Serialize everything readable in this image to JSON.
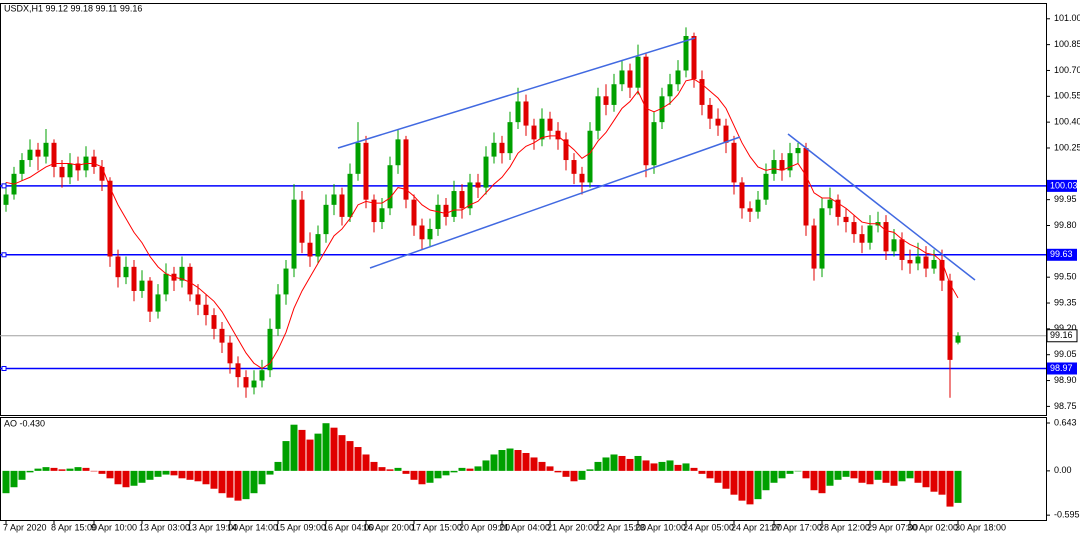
{
  "chart_data": [
    {
      "type": "candlestick",
      "title": "USDX,H1  99.12 99.18 99.11 99.16",
      "up_color": "#00a000",
      "down_color": "#e00000",
      "ma_color": "#ff0000",
      "ylim": [
        98.7,
        101.08
      ],
      "yticks": [
        {
          "value": 101,
          "label": "101.00"
        },
        100.85,
        {
          "value": 100.7,
          "label": "100.70"
        },
        100.55,
        {
          "value": 100.4,
          "label": "100.40"
        },
        100.25,
        99.95,
        {
          "value": 99.8,
          "label": "99.80"
        },
        {
          "value": 99.5,
          "label": "99.50"
        },
        99.35,
        {
          "value": 99.2,
          "label": "99.20"
        },
        99.05,
        {
          "value": 98.9,
          "label": "98.90"
        },
        98.75
      ],
      "levels": [
        {
          "value": 100.03,
          "color": "#0000ff"
        },
        {
          "value": 99.63,
          "color": "#0000ff"
        },
        {
          "value": 98.97,
          "color": "#0000ff"
        }
      ],
      "price_line": 99.16,
      "categories": [
        "7 Apr 2020",
        null,
        null,
        null,
        null,
        null,
        "8 Apr 15:00",
        null,
        null,
        null,
        null,
        "9 Apr 10:00",
        null,
        null,
        null,
        null,
        null,
        "13 Apr 03:00",
        null,
        null,
        null,
        null,
        null,
        "13 Apr 19:00",
        null,
        null,
        null,
        null,
        "14 Apr 14:00",
        null,
        null,
        null,
        null,
        null,
        "15 Apr 09:00",
        null,
        null,
        null,
        null,
        null,
        "16 Apr 04:00",
        null,
        null,
        null,
        null,
        "16 Apr 20:00",
        null,
        null,
        null,
        null,
        null,
        "17 Apr 15:00",
        null,
        null,
        null,
        null,
        null,
        "20 Apr 09:00",
        null,
        null,
        null,
        null,
        "21 Apr 04:00",
        null,
        null,
        null,
        null,
        null,
        "21 Apr 20:00",
        null,
        null,
        null,
        null,
        null,
        "22 Apr 15:00",
        null,
        null,
        null,
        null,
        "23 Apr 10:00",
        null,
        null,
        null,
        null,
        null,
        "24 Apr 05:00",
        null,
        null,
        null,
        null,
        null,
        "24 Apr 21:00",
        null,
        null,
        null,
        null,
        "27 Apr 17:00",
        null,
        null,
        null,
        null,
        null,
        "28 Apr 12:00",
        null,
        null,
        null,
        null,
        null,
        "29 Apr 07:00",
        null,
        null,
        null,
        null,
        "30 Apr 02:00",
        null,
        null,
        null,
        null,
        null,
        "30 Apr 18:00"
      ],
      "candles": [
        [
          99.92,
          100.05,
          99.88,
          99.98
        ],
        [
          99.98,
          100.14,
          99.95,
          100.1
        ],
        [
          100.1,
          100.22,
          100.06,
          100.18
        ],
        [
          100.18,
          100.3,
          100.14,
          100.24
        ],
        [
          100.24,
          100.28,
          100.12,
          100.2
        ],
        [
          100.2,
          100.36,
          100.16,
          100.28
        ],
        [
          100.28,
          100.3,
          100.08,
          100.14
        ],
        [
          100.14,
          100.18,
          100.02,
          100.08
        ],
        [
          100.08,
          100.22,
          100.04,
          100.16
        ],
        [
          100.16,
          100.2,
          100.06,
          100.12
        ],
        [
          100.12,
          100.26,
          100.08,
          100.2
        ],
        [
          100.2,
          100.24,
          100.1,
          100.14
        ],
        [
          100.14,
          100.18,
          100.0,
          100.06
        ],
        [
          100.06,
          100.08,
          99.56,
          99.62
        ],
        [
          99.62,
          99.66,
          99.44,
          99.5
        ],
        [
          99.5,
          99.62,
          99.46,
          99.56
        ],
        [
          99.56,
          99.6,
          99.36,
          99.42
        ],
        [
          99.42,
          99.54,
          99.38,
          99.48
        ],
        [
          99.48,
          99.5,
          99.24,
          99.3
        ],
        [
          99.3,
          99.46,
          99.26,
          99.4
        ],
        [
          99.4,
          99.58,
          99.36,
          99.52
        ],
        [
          99.52,
          99.56,
          99.42,
          99.48
        ],
        [
          99.48,
          99.62,
          99.44,
          99.56
        ],
        [
          99.56,
          99.58,
          99.36,
          99.4
        ],
        [
          99.4,
          99.46,
          99.28,
          99.34
        ],
        [
          99.34,
          99.4,
          99.22,
          99.28
        ],
        [
          99.28,
          99.32,
          99.14,
          99.2
        ],
        [
          99.2,
          99.24,
          99.06,
          99.12
        ],
        [
          99.12,
          99.16,
          98.94,
          99.0
        ],
        [
          99.0,
          99.04,
          98.86,
          98.92
        ],
        [
          98.92,
          98.96,
          98.8,
          98.86
        ],
        [
          98.86,
          98.96,
          98.82,
          98.9
        ],
        [
          98.9,
          99.02,
          98.86,
          98.96
        ],
        [
          98.96,
          99.26,
          98.92,
          99.2
        ],
        [
          99.2,
          99.46,
          99.16,
          99.4
        ],
        [
          99.4,
          99.6,
          99.34,
          99.55
        ],
        [
          99.55,
          100.04,
          99.5,
          99.95
        ],
        [
          99.95,
          100.0,
          99.64,
          99.7
        ],
        [
          99.7,
          99.76,
          99.56,
          99.62
        ],
        [
          99.62,
          99.8,
          99.58,
          99.75
        ],
        [
          99.75,
          99.98,
          99.7,
          99.92
        ],
        [
          99.92,
          100.04,
          99.86,
          99.98
        ],
        [
          99.98,
          100.02,
          99.8,
          99.85
        ],
        [
          99.85,
          100.16,
          99.82,
          100.1
        ],
        [
          100.1,
          100.4,
          100.06,
          100.28
        ],
        [
          100.28,
          100.32,
          99.9,
          99.95
        ],
        [
          99.95,
          99.98,
          99.76,
          99.82
        ],
        [
          99.82,
          99.96,
          99.78,
          99.9
        ],
        [
          99.9,
          100.2,
          99.86,
          100.15
        ],
        [
          100.15,
          100.36,
          100.1,
          100.3
        ],
        [
          100.3,
          100.32,
          99.9,
          99.95
        ],
        [
          99.95,
          99.98,
          99.74,
          99.8
        ],
        [
          99.8,
          99.84,
          99.66,
          99.72
        ],
        [
          99.72,
          99.84,
          99.68,
          99.78
        ],
        [
          99.78,
          99.98,
          99.74,
          99.92
        ],
        [
          99.92,
          99.96,
          99.8,
          99.85
        ],
        [
          99.85,
          100.06,
          99.82,
          100.0
        ],
        [
          100.0,
          100.04,
          99.84,
          99.9
        ],
        [
          99.9,
          100.1,
          99.86,
          100.05
        ],
        [
          100.05,
          100.1,
          99.96,
          100.02
        ],
        [
          100.02,
          100.26,
          99.98,
          100.2
        ],
        [
          100.2,
          100.34,
          100.16,
          100.28
        ],
        [
          100.28,
          100.32,
          100.16,
          100.22
        ],
        [
          100.22,
          100.46,
          100.18,
          100.4
        ],
        [
          100.4,
          100.6,
          100.36,
          100.52
        ],
        [
          100.52,
          100.56,
          100.32,
          100.38
        ],
        [
          100.38,
          100.42,
          100.24,
          100.3
        ],
        [
          100.3,
          100.48,
          100.26,
          100.42
        ],
        [
          100.42,
          100.46,
          100.3,
          100.35
        ],
        [
          100.35,
          100.4,
          100.24,
          100.3
        ],
        [
          100.3,
          100.34,
          100.12,
          100.18
        ],
        [
          100.18,
          100.22,
          100.04,
          100.1
        ],
        [
          100.1,
          100.14,
          99.98,
          100.05
        ],
        [
          100.05,
          100.4,
          100.02,
          100.35
        ],
        [
          100.35,
          100.6,
          100.3,
          100.55
        ],
        [
          100.55,
          100.62,
          100.44,
          100.5
        ],
        [
          100.5,
          100.68,
          100.46,
          100.62
        ],
        [
          100.62,
          100.76,
          100.58,
          100.7
        ],
        [
          100.7,
          100.74,
          100.54,
          100.6
        ],
        [
          100.6,
          100.85,
          100.56,
          100.78
        ],
        [
          100.78,
          100.8,
          100.08,
          100.15
        ],
        [
          100.15,
          100.46,
          100.1,
          100.4
        ],
        [
          100.4,
          100.6,
          100.36,
          100.55
        ],
        [
          100.55,
          100.68,
          100.5,
          100.62
        ],
        [
          100.62,
          100.76,
          100.58,
          100.7
        ],
        [
          100.7,
          100.95,
          100.66,
          100.9
        ],
        [
          100.9,
          100.92,
          100.6,
          100.65
        ],
        [
          100.65,
          100.7,
          100.44,
          100.5
        ],
        [
          100.5,
          100.54,
          100.36,
          100.42
        ],
        [
          100.42,
          100.48,
          100.32,
          100.38
        ],
        [
          100.38,
          100.42,
          100.22,
          100.28
        ],
        [
          100.28,
          100.32,
          99.98,
          100.05
        ],
        [
          100.05,
          100.08,
          99.84,
          99.9
        ],
        [
          99.9,
          99.94,
          99.82,
          99.88
        ],
        [
          99.88,
          100.0,
          99.84,
          99.95
        ],
        [
          99.95,
          100.16,
          99.92,
          100.1
        ],
        [
          100.1,
          100.24,
          100.06,
          100.18
        ],
        [
          100.18,
          100.22,
          100.06,
          100.12
        ],
        [
          100.12,
          100.28,
          100.08,
          100.22
        ],
        [
          100.22,
          100.28,
          100.16,
          100.25
        ],
        [
          100.25,
          100.28,
          99.74,
          99.8
        ],
        [
          99.8,
          99.84,
          99.48,
          99.55
        ],
        [
          99.55,
          99.96,
          99.5,
          99.9
        ],
        [
          99.9,
          100.02,
          99.86,
          99.95
        ],
        [
          99.95,
          99.98,
          99.8,
          99.85
        ],
        [
          99.85,
          99.9,
          99.76,
          99.82
        ],
        [
          99.82,
          99.86,
          99.7,
          99.75
        ],
        [
          99.75,
          99.8,
          99.64,
          99.7
        ],
        [
          99.7,
          99.86,
          99.66,
          99.8
        ],
        [
          99.8,
          99.88,
          99.76,
          99.82
        ],
        [
          99.82,
          99.86,
          99.6,
          99.65
        ],
        [
          99.65,
          99.78,
          99.62,
          99.72
        ],
        [
          99.72,
          99.76,
          99.54,
          99.6
        ],
        [
          99.6,
          99.66,
          99.52,
          99.58
        ],
        [
          99.58,
          99.7,
          99.54,
          99.62
        ],
        [
          99.62,
          99.68,
          99.5,
          99.55
        ],
        [
          99.55,
          99.66,
          99.52,
          99.6
        ],
        [
          99.6,
          99.66,
          99.42,
          99.48
        ],
        [
          99.48,
          99.52,
          98.8,
          99.02
        ],
        [
          99.12,
          99.18,
          99.11,
          99.16
        ]
      ],
      "ma": [
        100.05,
        100.04,
        100.06,
        100.08,
        100.11,
        100.14,
        100.16,
        100.16,
        100.16,
        100.15,
        100.16,
        100.16,
        100.14,
        100.02,
        99.92,
        99.84,
        99.76,
        99.7,
        99.62,
        99.56,
        99.52,
        99.5,
        99.49,
        99.47,
        99.44,
        99.4,
        99.36,
        99.3,
        99.22,
        99.14,
        99.06,
        99.0,
        98.97,
        99.0,
        99.08,
        99.18,
        99.32,
        99.42,
        99.5,
        99.58,
        99.66,
        99.74,
        99.78,
        99.84,
        99.92,
        99.94,
        99.93,
        99.93,
        99.96,
        100.02,
        100.01,
        99.97,
        99.92,
        99.89,
        99.88,
        99.87,
        99.89,
        99.89,
        99.92,
        99.94,
        99.99,
        100.04,
        100.08,
        100.14,
        100.22,
        100.26,
        100.28,
        100.31,
        100.32,
        100.32,
        100.28,
        100.24,
        100.19,
        100.22,
        100.29,
        100.34,
        100.41,
        100.48,
        100.52,
        100.58,
        100.48,
        100.46,
        100.48,
        100.51,
        100.56,
        100.64,
        100.65,
        100.62,
        100.58,
        100.54,
        100.48,
        100.38,
        100.28,
        100.2,
        100.14,
        100.12,
        100.13,
        100.12,
        100.14,
        100.16,
        100.09,
        99.99,
        99.96,
        99.96,
        99.93,
        99.9,
        99.86,
        99.82,
        99.81,
        99.81,
        99.77,
        99.76,
        99.72,
        99.69,
        99.67,
        99.64,
        99.63,
        99.59,
        99.46,
        99.38
      ]
    },
    {
      "type": "bar",
      "title": "AO -0.430",
      "up_color": "#00a000",
      "down_color": "#e00000",
      "ylim": [
        -0.66,
        0.71
      ],
      "yticks": [
        0.643,
        {
          "value": 0,
          "label": "0.00"
        },
        -0.595
      ],
      "values": [
        -0.3,
        -0.22,
        -0.12,
        -0.02,
        0.03,
        0.05,
        0.04,
        0.02,
        0.03,
        0.05,
        0.04,
        0.0,
        -0.04,
        -0.1,
        -0.18,
        -0.22,
        -0.2,
        -0.16,
        -0.12,
        -0.08,
        -0.05,
        -0.06,
        -0.1,
        -0.12,
        -0.14,
        -0.18,
        -0.24,
        -0.3,
        -0.36,
        -0.4,
        -0.38,
        -0.3,
        -0.18,
        -0.05,
        0.12,
        0.4,
        0.62,
        0.55,
        0.42,
        0.5,
        0.64,
        0.58,
        0.48,
        0.4,
        0.32,
        0.22,
        0.12,
        0.05,
        0.02,
        0.04,
        -0.04,
        -0.12,
        -0.18,
        -0.16,
        -0.1,
        -0.06,
        -0.02,
        0.04,
        0.03,
        0.06,
        0.14,
        0.22,
        0.28,
        0.3,
        0.28,
        0.24,
        0.18,
        0.12,
        0.06,
        -0.02,
        -0.08,
        -0.14,
        -0.12,
        0.02,
        0.12,
        0.18,
        0.22,
        0.2,
        0.16,
        0.2,
        0.14,
        0.1,
        0.12,
        0.14,
        0.08,
        0.1,
        0.04,
        -0.04,
        -0.1,
        -0.16,
        -0.24,
        -0.32,
        -0.4,
        -0.45,
        -0.38,
        -0.26,
        -0.16,
        -0.1,
        -0.04,
        0.0,
        -0.1,
        -0.26,
        -0.3,
        -0.2,
        -0.12,
        -0.08,
        -0.1,
        -0.16,
        -0.18,
        -0.12,
        -0.16,
        -0.2,
        -0.14,
        -0.1,
        -0.16,
        -0.22,
        -0.28,
        -0.32,
        -0.48,
        -0.43
      ]
    }
  ]
}
